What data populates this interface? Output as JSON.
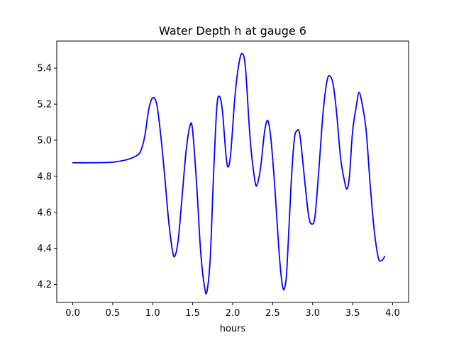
{
  "chart_data": {
    "type": "line",
    "title": "Water Depth h at gauge 6",
    "xlabel": "hours",
    "ylabel": "",
    "xlim": [
      -0.2,
      4.2
    ],
    "ylim": [
      4.1,
      5.55
    ],
    "xticks": [
      0.0,
      0.5,
      1.0,
      1.5,
      2.0,
      2.5,
      3.0,
      3.5,
      4.0
    ],
    "xtick_labels": [
      "0.0",
      "0.5",
      "1.0",
      "1.5",
      "2.0",
      "2.5",
      "3.0",
      "3.5",
      "4.0"
    ],
    "yticks": [
      4.2,
      4.4,
      4.6,
      4.8,
      5.0,
      5.2,
      5.4
    ],
    "ytick_labels": [
      "4.2",
      "4.4",
      "4.6",
      "4.8",
      "5.0",
      "5.2",
      "5.4"
    ],
    "grid": false,
    "series": [
      {
        "color": "#0000ff",
        "points": [
          [
            0.0,
            4.875
          ],
          [
            0.2,
            4.875
          ],
          [
            0.4,
            4.876
          ],
          [
            0.5,
            4.878
          ],
          [
            0.6,
            4.885
          ],
          [
            0.7,
            4.895
          ],
          [
            0.8,
            4.915
          ],
          [
            0.85,
            4.94
          ],
          [
            0.9,
            5.02
          ],
          [
            0.95,
            5.17
          ],
          [
            1.0,
            5.235
          ],
          [
            1.05,
            5.2
          ],
          [
            1.1,
            5.03
          ],
          [
            1.15,
            4.8
          ],
          [
            1.2,
            4.55
          ],
          [
            1.25,
            4.38
          ],
          [
            1.28,
            4.36
          ],
          [
            1.32,
            4.45
          ],
          [
            1.37,
            4.7
          ],
          [
            1.42,
            4.95
          ],
          [
            1.47,
            5.085
          ],
          [
            1.5,
            5.05
          ],
          [
            1.55,
            4.75
          ],
          [
            1.6,
            4.38
          ],
          [
            1.65,
            4.18
          ],
          [
            1.68,
            4.165
          ],
          [
            1.72,
            4.35
          ],
          [
            1.76,
            4.8
          ],
          [
            1.8,
            5.17
          ],
          [
            1.83,
            5.245
          ],
          [
            1.87,
            5.17
          ],
          [
            1.92,
            4.9
          ],
          [
            1.95,
            4.855
          ],
          [
            1.98,
            4.95
          ],
          [
            2.03,
            5.25
          ],
          [
            2.08,
            5.43
          ],
          [
            2.12,
            5.48
          ],
          [
            2.16,
            5.4
          ],
          [
            2.22,
            5.0
          ],
          [
            2.28,
            4.77
          ],
          [
            2.31,
            4.76
          ],
          [
            2.35,
            4.85
          ],
          [
            2.4,
            5.05
          ],
          [
            2.44,
            5.108
          ],
          [
            2.48,
            5.0
          ],
          [
            2.53,
            4.72
          ],
          [
            2.58,
            4.38
          ],
          [
            2.62,
            4.2
          ],
          [
            2.65,
            4.18
          ],
          [
            2.68,
            4.3
          ],
          [
            2.73,
            4.75
          ],
          [
            2.77,
            5.0
          ],
          [
            2.8,
            5.05
          ],
          [
            2.84,
            5.03
          ],
          [
            2.9,
            4.78
          ],
          [
            2.95,
            4.58
          ],
          [
            2.99,
            4.535
          ],
          [
            3.03,
            4.58
          ],
          [
            3.08,
            4.85
          ],
          [
            3.13,
            5.15
          ],
          [
            3.18,
            5.33
          ],
          [
            3.22,
            5.355
          ],
          [
            3.26,
            5.3
          ],
          [
            3.3,
            5.15
          ],
          [
            3.35,
            4.9
          ],
          [
            3.4,
            4.77
          ],
          [
            3.43,
            4.73
          ],
          [
            3.46,
            4.8
          ],
          [
            3.5,
            5.05
          ],
          [
            3.55,
            5.2
          ],
          [
            3.58,
            5.265
          ],
          [
            3.62,
            5.2
          ],
          [
            3.67,
            5.05
          ],
          [
            3.72,
            4.75
          ],
          [
            3.77,
            4.5
          ],
          [
            3.82,
            4.35
          ],
          [
            3.85,
            4.33
          ],
          [
            3.88,
            4.34
          ],
          [
            3.9,
            4.355
          ]
        ]
      }
    ]
  }
}
